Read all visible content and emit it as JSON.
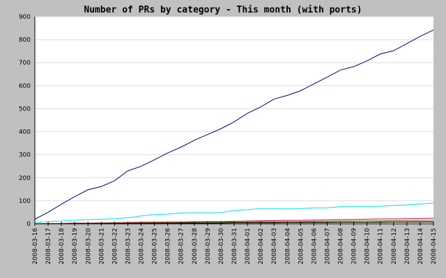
{
  "chart_data": {
    "type": "line",
    "title": "Number of PRs by category - This month (with ports)",
    "xlabel": "",
    "ylabel": "",
    "ylim": [
      0,
      900
    ],
    "yticks": [
      0,
      100,
      200,
      300,
      400,
      500,
      600,
      700,
      800,
      900
    ],
    "grid": true,
    "legend": "none",
    "categories": [
      "2008-03-16",
      "2008-03-17",
      "2008-03-18",
      "2008-03-19",
      "2008-03-20",
      "2008-03-21",
      "2008-03-22",
      "2008-03-23",
      "2008-03-24",
      "2008-03-25",
      "2008-03-26",
      "2008-03-27",
      "2008-03-28",
      "2008-03-29",
      "2008-03-30",
      "2008-03-31",
      "2008-04-01",
      "2008-04-02",
      "2008-04-03",
      "2008-04-04",
      "2008-04-05",
      "2008-04-06",
      "2008-04-07",
      "2008-04-08",
      "2008-04-09",
      "2008-04-10",
      "2008-04-11",
      "2008-04-12",
      "2008-04-13",
      "2008-04-14",
      "2008-04-15"
    ],
    "series": [
      {
        "color": "#000080",
        "values": [
          20,
          50,
          85,
          118,
          148,
          162,
          187,
          230,
          250,
          278,
          308,
          333,
          363,
          388,
          413,
          443,
          480,
          508,
          542,
          558,
          578,
          608,
          637,
          668,
          683,
          708,
          738,
          752,
          783,
          815,
          842
        ]
      },
      {
        "color": "#00e0e0",
        "values": [
          5,
          10,
          12,
          15,
          18,
          20,
          22,
          26,
          34,
          40,
          42,
          47,
          48,
          48,
          48,
          58,
          61,
          66,
          66,
          66,
          66,
          69,
          69,
          74,
          74,
          74,
          76,
          80,
          82,
          86,
          90
        ]
      },
      {
        "color": "#c00060",
        "values": [
          0,
          1,
          2,
          3,
          3,
          4,
          5,
          6,
          7,
          7,
          8,
          8,
          9,
          10,
          10,
          11,
          12,
          13,
          14,
          15,
          15,
          16,
          17,
          18,
          19,
          20,
          21,
          21,
          22,
          23,
          24
        ]
      },
      {
        "color": "#806000",
        "values": [
          0,
          1,
          1,
          2,
          2,
          3,
          3,
          4,
          4,
          5,
          5,
          6,
          6,
          7,
          7,
          8,
          8,
          9,
          9,
          10,
          10,
          11,
          11,
          12,
          12,
          13,
          13,
          14,
          14,
          15,
          15
        ]
      },
      {
        "color": "#40a000",
        "values": [
          0,
          0,
          1,
          1,
          1,
          2,
          2,
          2,
          3,
          3,
          3,
          4,
          4,
          4,
          5,
          5,
          5,
          6,
          6,
          6,
          7,
          7,
          7,
          8,
          8,
          8,
          9,
          9,
          9,
          10,
          10
        ]
      },
      {
        "color": "#000000",
        "values": [
          0,
          0,
          0,
          1,
          1,
          1,
          1,
          2,
          2,
          2,
          2,
          3,
          3,
          3,
          3,
          4,
          4,
          4,
          4,
          5,
          5,
          5,
          5,
          6,
          6,
          6,
          6,
          7,
          7,
          7,
          7
        ]
      }
    ]
  }
}
